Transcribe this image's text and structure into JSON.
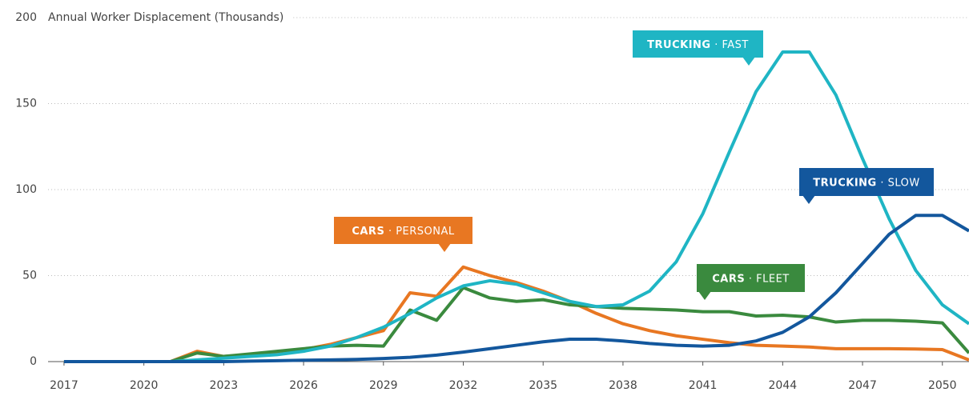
{
  "chart_data": {
    "type": "line",
    "y_axis_label": "Annual Worker Displacement (Thousands)",
    "x": [
      2017,
      2018,
      2019,
      2020,
      2021,
      2022,
      2023,
      2024,
      2025,
      2026,
      2027,
      2028,
      2029,
      2030,
      2031,
      2032,
      2033,
      2034,
      2035,
      2036,
      2037,
      2038,
      2039,
      2040,
      2041,
      2042,
      2043,
      2044,
      2045,
      2046,
      2047,
      2048,
      2049,
      2050,
      2051
    ],
    "xlim": [
      2016.4,
      2051
    ],
    "xticks": [
      2017,
      2020,
      2023,
      2026,
      2029,
      2032,
      2035,
      2038,
      2041,
      2044,
      2047,
      2050
    ],
    "ylim": [
      0,
      200
    ],
    "yticks": [
      0,
      50,
      100,
      150,
      200
    ],
    "grid": true,
    "series": [
      {
        "label": [
          "CARS",
          "· PERSONAL"
        ],
        "color": "#e87722",
        "values": [
          0,
          0,
          0,
          0,
          0,
          6,
          3,
          4,
          5,
          7,
          10,
          14,
          18,
          40,
          38,
          55,
          50,
          46,
          41,
          35,
          28,
          22,
          18,
          15,
          13,
          11,
          9.5,
          9,
          8.5,
          7.5,
          7.5,
          7.5,
          7.3,
          7,
          1
        ]
      },
      {
        "label": [
          "CARS",
          "· FLEET"
        ],
        "color": "#3a8a3e",
        "values": [
          0,
          0,
          0,
          0,
          0,
          5,
          3,
          4.5,
          6,
          7.5,
          9,
          9.5,
          9,
          30,
          24,
          43,
          37,
          35,
          36,
          33,
          32,
          31,
          30.5,
          30,
          29,
          29,
          26.5,
          27,
          26,
          23,
          24,
          24,
          23.5,
          22.5,
          5
        ]
      },
      {
        "label": [
          "TRUCKING",
          "· FAST"
        ],
        "color": "#1fb5c4",
        "values": [
          0,
          0,
          0,
          0,
          0,
          1,
          2,
          3,
          4,
          6,
          9,
          14,
          20,
          28,
          37,
          44,
          47,
          45,
          40,
          35,
          32,
          33,
          41,
          58,
          86,
          122,
          157,
          180,
          180,
          155,
          118,
          83,
          53,
          33,
          22
        ]
      },
      {
        "label": [
          "TRUCKING",
          "· SLOW"
        ],
        "color": "#13579d",
        "values": [
          0,
          0,
          0,
          0,
          0,
          0,
          0,
          0.3,
          0.5,
          0.8,
          1,
          1.3,
          1.8,
          2.5,
          3.8,
          5.5,
          7.5,
          9.5,
          11.5,
          13,
          13,
          12,
          10.5,
          9.5,
          9,
          9.5,
          12,
          17,
          26,
          40,
          57,
          74,
          85,
          85,
          76
        ]
      }
    ]
  }
}
